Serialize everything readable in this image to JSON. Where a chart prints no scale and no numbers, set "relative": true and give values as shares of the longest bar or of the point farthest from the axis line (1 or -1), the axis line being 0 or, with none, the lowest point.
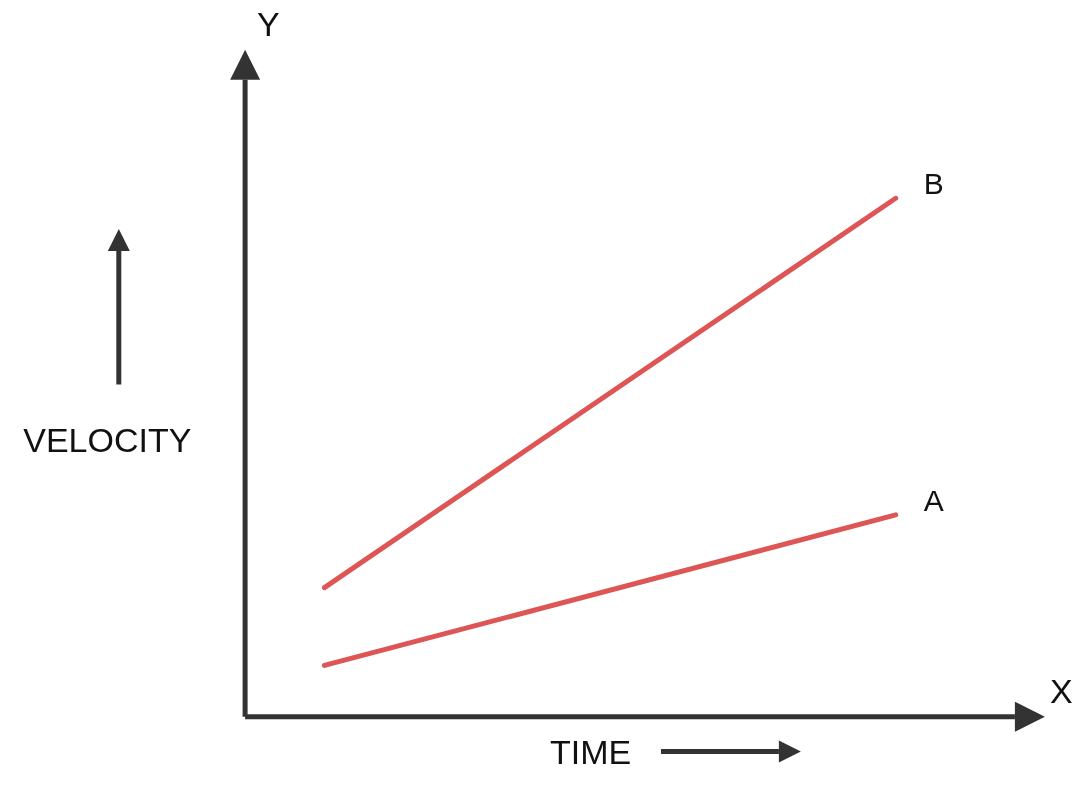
{
  "chart_data": {
    "type": "line",
    "relative": true,
    "xlabel": "TIME",
    "ylabel": "VELOCITY",
    "annotations": [
      "Y",
      "X"
    ],
    "categories": [
      null,
      null
    ],
    "line_style": "solid",
    "series": [
      {
        "name": "B",
        "color": "#dd5555",
        "values": [
          0.25,
          1
        ]
      },
      {
        "name": "A",
        "color": "#dd5555",
        "values": [
          0.1,
          0.39
        ]
      }
    ]
  }
}
